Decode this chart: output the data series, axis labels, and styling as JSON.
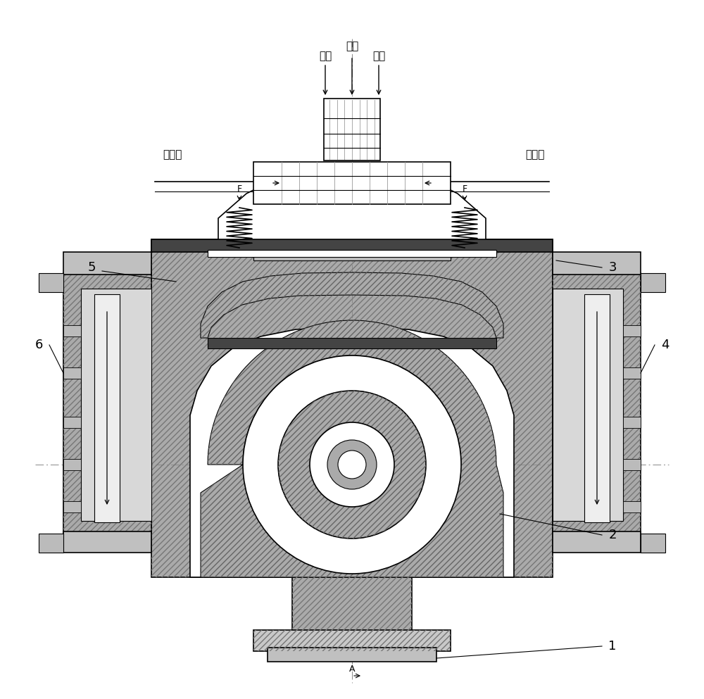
{
  "figure_width": 10.0,
  "figure_height": 9.93,
  "bg_color": "#ffffff",
  "line_color": "#000000",
  "labels": {
    "oxygen": "氧气",
    "fuel1": "燃气",
    "fuel2": "燃气",
    "coolwater_left": "冷却水",
    "coolwater_right": "冷却水",
    "num1": "1",
    "num2": "2",
    "num3": "3",
    "num4": "4",
    "num5": "5",
    "num6": "6",
    "F_left": "F",
    "F_right": "F",
    "A_label": "A"
  }
}
